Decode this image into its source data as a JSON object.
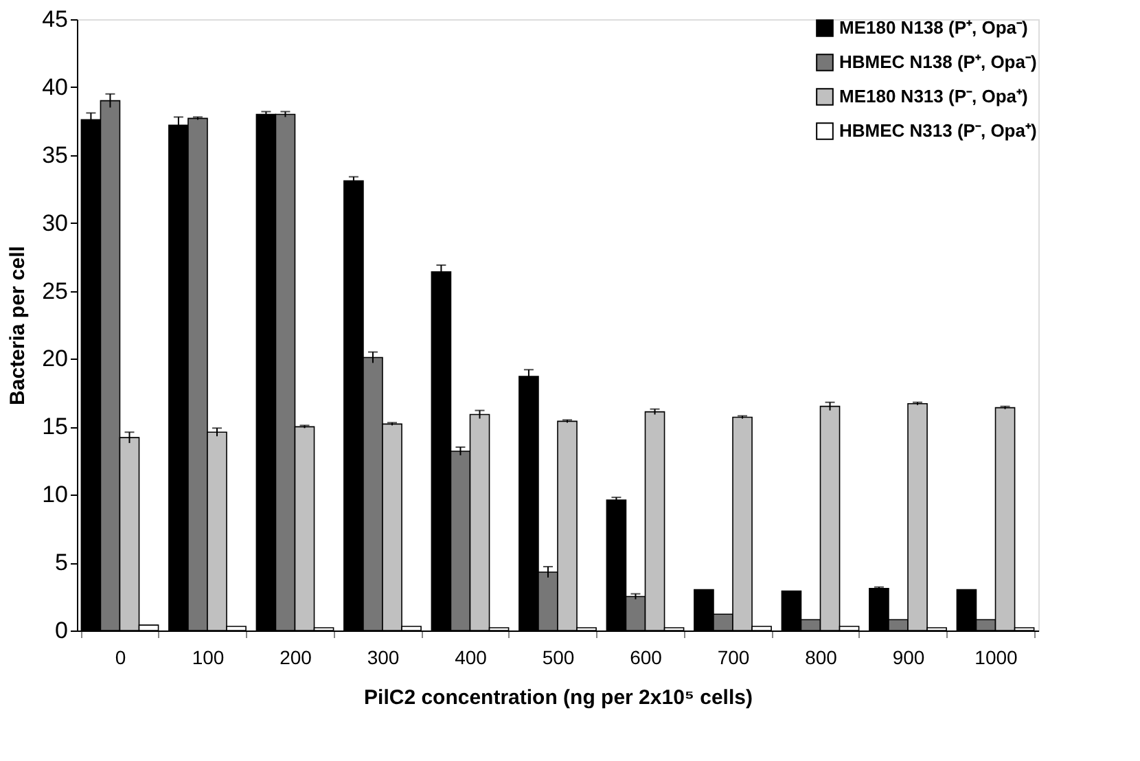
{
  "chart_data": {
    "type": "bar",
    "xlabel": "PilC2 concentration (ng per 2x10⁵ cells)",
    "ylabel": "Bacteria per cell",
    "categories": [
      "0",
      "100",
      "200",
      "300",
      "400",
      "500",
      "600",
      "700",
      "800",
      "900",
      "1000"
    ],
    "series": [
      {
        "name": "ME180   N138 (P⁺, Opa⁻)",
        "color": "#000000",
        "values": [
          37.6,
          37.2,
          38.0,
          33.1,
          26.4,
          18.7,
          9.6,
          3.0,
          2.9,
          3.1,
          3.0
        ],
        "errors": [
          0.5,
          0.6,
          0.2,
          0.3,
          0.5,
          0.5,
          0.2,
          null,
          null,
          0.1,
          null
        ]
      },
      {
        "name": "HBMEC N138 (P⁺, Opa⁻)",
        "color": "#777777",
        "values": [
          39.0,
          37.7,
          38.0,
          20.1,
          13.2,
          4.3,
          2.5,
          1.2,
          0.8,
          0.8,
          0.8
        ],
        "errors": [
          0.5,
          0.1,
          0.2,
          0.4,
          0.3,
          0.4,
          0.2,
          null,
          null,
          null,
          null
        ]
      },
      {
        "name": "ME180   N313 (P⁻, Opa⁺)",
        "color": "#c0c0c0",
        "values": [
          14.2,
          14.6,
          15.0,
          15.2,
          15.9,
          15.4,
          16.1,
          15.7,
          16.5,
          16.7,
          16.4
        ],
        "errors": [
          0.4,
          0.3,
          0.1,
          0.1,
          0.3,
          0.1,
          0.2,
          0.1,
          0.3,
          0.1,
          0.1
        ]
      },
      {
        "name": "HBMEC N313 (P⁻, Opa⁺)",
        "color": "#ffffff",
        "values": [
          0.4,
          0.3,
          0.2,
          0.3,
          0.2,
          0.2,
          0.2,
          0.3,
          0.3,
          0.2,
          0.2
        ]
      }
    ],
    "ylim": [
      0,
      45
    ],
    "yticks": [
      0,
      5,
      10,
      15,
      20,
      25,
      30,
      35,
      40,
      45
    ],
    "grid": false,
    "legend": "top right"
  }
}
